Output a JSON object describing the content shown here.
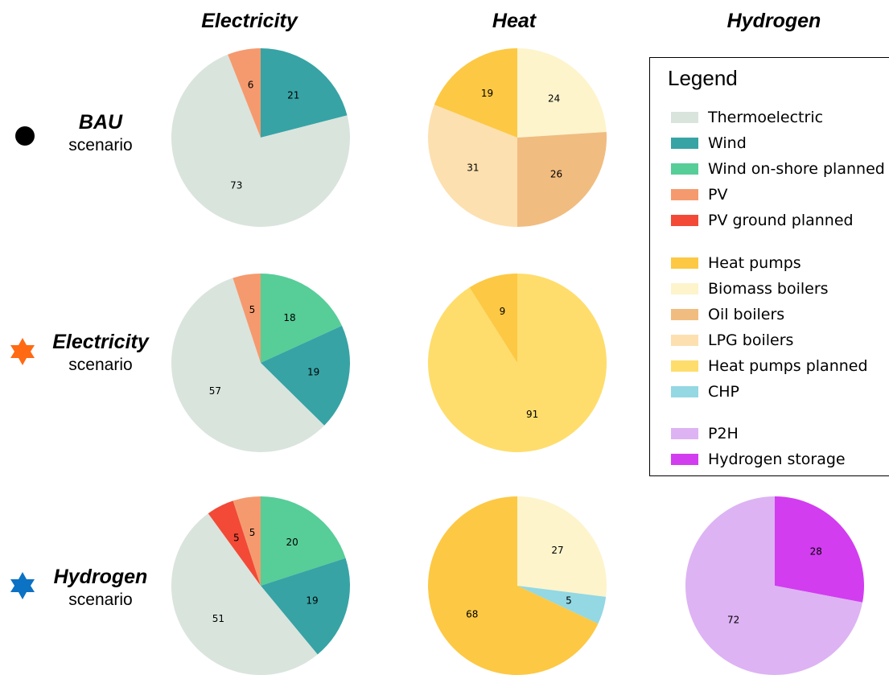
{
  "columns": [
    "Electricity",
    "Heat",
    "Hydrogen"
  ],
  "rows": [
    {
      "name": "BAU",
      "sub": "scenario",
      "marker": "circle",
      "marker_color": "#000000"
    },
    {
      "name": "Electricity",
      "sub": "scenario",
      "marker": "star",
      "marker_color": "#ff6a13"
    },
    {
      "name": "Hydrogen",
      "sub": "scenario",
      "marker": "star",
      "marker_color": "#0b72c4"
    }
  ],
  "legend": {
    "title": "Legend",
    "groups": [
      [
        {
          "label": "Thermoelectric",
          "color": "#d9e4dd"
        },
        {
          "label": "Wind",
          "color": "#37a3a5"
        },
        {
          "label": "Wind on-shore planned",
          "color": "#57cd98"
        },
        {
          "label": "PV",
          "color": "#f59a6e"
        },
        {
          "label": "PV ground planned",
          "color": "#f24a36"
        }
      ],
      [
        {
          "label": "Heat pumps",
          "color": "#fdc843"
        },
        {
          "label": "Biomass boilers",
          "color": "#fdf4cc"
        },
        {
          "label": "Oil boilers",
          "color": "#f1bc80"
        },
        {
          "label": "LPG boilers",
          "color": "#fde0b0"
        },
        {
          "label": "Heat pumps planned",
          "color": "#fedd6c"
        },
        {
          "label": "CHP",
          "color": "#93d8e3"
        }
      ],
      [
        {
          "label": "P2H",
          "color": "#ddb3f4"
        },
        {
          "label": "Hydrogen storage",
          "color": "#d23df0"
        }
      ]
    ]
  },
  "chart_data": [
    {
      "type": "pie",
      "scenario": "BAU",
      "column": "Electricity",
      "slices": [
        {
          "label": "Wind",
          "value": 21,
          "color": "#37a3a5"
        },
        {
          "label": "Thermoelectric",
          "value": 73,
          "color": "#d9e4dd"
        },
        {
          "label": "PV",
          "value": 6,
          "color": "#f59a6e"
        }
      ]
    },
    {
      "type": "pie",
      "scenario": "BAU",
      "column": "Heat",
      "slices": [
        {
          "label": "Biomass boilers",
          "value": 24,
          "color": "#fdf4cc"
        },
        {
          "label": "Oil boilers",
          "value": 26,
          "color": "#f1bc80"
        },
        {
          "label": "LPG boilers",
          "value": 31,
          "color": "#fde0b0"
        },
        {
          "label": "Heat pumps",
          "value": 19,
          "color": "#fdc843"
        }
      ]
    },
    {
      "type": "pie",
      "scenario": "Electricity",
      "column": "Electricity",
      "slices": [
        {
          "label": "Wind on-shore planned",
          "value": 18,
          "color": "#57cd98"
        },
        {
          "label": "Wind",
          "value": 19,
          "color": "#37a3a5"
        },
        {
          "label": "Thermoelectric",
          "value": 57,
          "color": "#d9e4dd"
        },
        {
          "label": "PV",
          "value": 5,
          "color": "#f59a6e"
        }
      ]
    },
    {
      "type": "pie",
      "scenario": "Electricity",
      "column": "Heat",
      "slices": [
        {
          "label": "Heat pumps planned",
          "value": 91,
          "color": "#fedd6c"
        },
        {
          "label": "Heat pumps",
          "value": 9,
          "color": "#fdc843"
        }
      ]
    },
    {
      "type": "pie",
      "scenario": "Hydrogen",
      "column": "Electricity",
      "slices": [
        {
          "label": "Wind on-shore planned",
          "value": 20,
          "color": "#57cd98"
        },
        {
          "label": "Wind",
          "value": 19,
          "color": "#37a3a5"
        },
        {
          "label": "Thermoelectric",
          "value": 51,
          "color": "#d9e4dd"
        },
        {
          "label": "PV ground planned",
          "value": 5,
          "color": "#f24a36"
        },
        {
          "label": "PV",
          "value": 5,
          "color": "#f59a6e"
        }
      ]
    },
    {
      "type": "pie",
      "scenario": "Hydrogen",
      "column": "Heat",
      "slices": [
        {
          "label": "Biomass boilers",
          "value": 27,
          "color": "#fdf4cc"
        },
        {
          "label": "CHP",
          "value": 5,
          "color": "#93d8e3"
        },
        {
          "label": "Heat pumps",
          "value": 68,
          "color": "#fdc843"
        }
      ]
    },
    {
      "type": "pie",
      "scenario": "Hydrogen",
      "column": "Hydrogen",
      "slices": [
        {
          "label": "Hydrogen storage",
          "value": 28,
          "color": "#d23df0"
        },
        {
          "label": "P2H",
          "value": 72,
          "color": "#ddb3f4"
        }
      ]
    }
  ]
}
